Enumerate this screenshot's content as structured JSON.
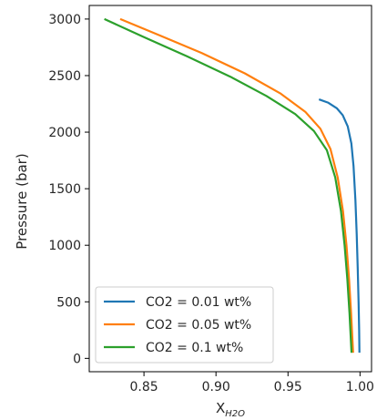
{
  "chart_data": {
    "type": "line",
    "title": "",
    "xlabel_main": "X",
    "xlabel_sub": "H2O",
    "ylabel": "Pressure (bar)",
    "xlim": [
      0.812,
      1.008
    ],
    "ylim": [
      -118,
      3120
    ],
    "x_ticks": [
      0.85,
      0.9,
      0.95,
      1.0
    ],
    "x_tick_labels": [
      "0.85",
      "0.90",
      "0.95",
      "1.00"
    ],
    "y_ticks": [
      0,
      500,
      1000,
      1500,
      2000,
      2500,
      3000
    ],
    "y_tick_labels": [
      "0",
      "500",
      "1000",
      "1500",
      "2000",
      "2500",
      "3000"
    ],
    "grid": false,
    "legend_position": "lower-left",
    "series": [
      {
        "name": "CO2 = 0.01 wt%",
        "color": "#1f77b4",
        "points": [
          [
            0.9715,
            2290
          ],
          [
            0.978,
            2260
          ],
          [
            0.984,
            2210
          ],
          [
            0.988,
            2150
          ],
          [
            0.9915,
            2050
          ],
          [
            0.994,
            1900
          ],
          [
            0.9955,
            1700
          ],
          [
            0.9968,
            1400
          ],
          [
            0.9977,
            1100
          ],
          [
            0.9984,
            800
          ],
          [
            0.999,
            500
          ],
          [
            0.9994,
            250
          ],
          [
            0.9996,
            50
          ]
        ]
      },
      {
        "name": "CO2 = 0.05 wt%",
        "color": "#ff7f0e",
        "points": [
          [
            0.8335,
            3000
          ],
          [
            0.86,
            2860
          ],
          [
            0.89,
            2700
          ],
          [
            0.92,
            2520
          ],
          [
            0.945,
            2340
          ],
          [
            0.962,
            2180
          ],
          [
            0.9725,
            2030
          ],
          [
            0.9795,
            1850
          ],
          [
            0.9845,
            1600
          ],
          [
            0.9882,
            1300
          ],
          [
            0.9906,
            1000
          ],
          [
            0.9924,
            700
          ],
          [
            0.9938,
            400
          ],
          [
            0.9948,
            150
          ],
          [
            0.9952,
            50
          ]
        ]
      },
      {
        "name": "CO2 = 0.1 wt%",
        "color": "#2ca02c",
        "points": [
          [
            0.8225,
            3000
          ],
          [
            0.85,
            2840
          ],
          [
            0.88,
            2670
          ],
          [
            0.91,
            2490
          ],
          [
            0.935,
            2320
          ],
          [
            0.955,
            2160
          ],
          [
            0.968,
            2010
          ],
          [
            0.977,
            1840
          ],
          [
            0.9828,
            1600
          ],
          [
            0.9868,
            1300
          ],
          [
            0.9893,
            1000
          ],
          [
            0.9912,
            700
          ],
          [
            0.9927,
            400
          ],
          [
            0.9937,
            150
          ],
          [
            0.9941,
            50
          ]
        ]
      }
    ]
  }
}
